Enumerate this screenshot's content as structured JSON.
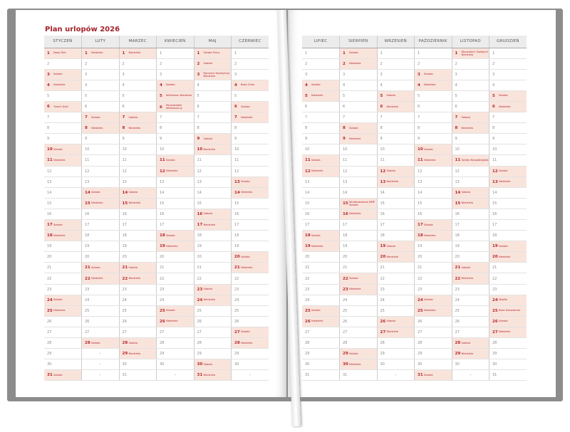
{
  "title": "Plan urlopów 2026",
  "empty_mark": "–",
  "colors": {
    "highlight": "#f9e4dc",
    "accent": "#b3282d",
    "title": "#a3232a"
  },
  "months": [
    {
      "name": "STYCZEŃ",
      "length": 31,
      "marks": {
        "1": "Nowy Rok",
        "3": "Sobota",
        "4": "Niedziela",
        "6": "Trzech Króli",
        "10": "Sobota",
        "11": "Niedziela",
        "17": "Sobota",
        "18": "Niedziela",
        "24": "Sobota",
        "25": "Niedziela",
        "31": "Sobota"
      }
    },
    {
      "name": "LUTY",
      "length": 28,
      "marks": {
        "1": "Niedziela",
        "7": "Sobota",
        "8": "Niedziela",
        "14": "Sobota",
        "15": "Niedziela",
        "21": "Sobota",
        "22": "Niedziela",
        "28": "Sobota"
      }
    },
    {
      "name": "MARZEC",
      "length": 31,
      "marks": {
        "1": "Niedziela",
        "7": "Sobota",
        "8": "Niedziela",
        "14": "Sobota",
        "15": "Niedziela",
        "21": "Sobota",
        "22": "Niedziela",
        "28": "Sobota",
        "29": "Niedziela"
      }
    },
    {
      "name": "KWIECIEŃ",
      "length": 30,
      "marks": {
        "4": "Sobota",
        "5": "Wielkanoc Niedziela",
        "6": "Poniedziałek Wielkanocny",
        "11": "Sobota",
        "12": "Niedziela",
        "18": "Sobota",
        "19": "Niedziela",
        "25": "Sobota",
        "26": "Niedziela"
      }
    },
    {
      "name": "MAJ",
      "length": 31,
      "marks": {
        "1": "Święto Pracy",
        "2": "Sobota",
        "3": "Rocznica Konstytucji Niedziela",
        "9": "Sobota",
        "10": "Niedziela",
        "16": "Sobota",
        "17": "Niedziela",
        "23": "Sobota",
        "24": "Niedziela",
        "30": "Sobota",
        "31": "Niedziela"
      }
    },
    {
      "name": "CZERWIEC",
      "length": 30,
      "marks": {
        "4": "Boże Ciało",
        "6": "Sobota",
        "7": "Niedziela",
        "13": "Sobota",
        "14": "Niedziela",
        "20": "Sobota",
        "21": "Niedziela",
        "27": "Sobota",
        "28": "Niedziela"
      }
    },
    {
      "name": "LIPIEC",
      "length": 31,
      "marks": {
        "4": "Sobota",
        "5": "Niedziela",
        "11": "Sobota",
        "12": "Niedziela",
        "18": "Sobota",
        "19": "Niedziela",
        "25": "Sobota",
        "26": "Niedziela"
      }
    },
    {
      "name": "SIERPIEŃ",
      "length": 31,
      "marks": {
        "1": "Sobota",
        "2": "Niedziela",
        "8": "Sobota",
        "9": "Niedziela",
        "15": "Wniebowzięcie NMP Sobota",
        "16": "Niedziela",
        "22": "Sobota",
        "23": "Niedziela",
        "29": "Sobota",
        "30": "Niedziela"
      }
    },
    {
      "name": "WRZESIEŃ",
      "length": 30,
      "marks": {
        "5": "Sobota",
        "6": "Niedziela",
        "12": "Sobota",
        "13": "Niedziela",
        "19": "Sobota",
        "20": "Niedziela",
        "26": "Sobota",
        "27": "Niedziela"
      }
    },
    {
      "name": "PAŹDZIERNIK",
      "length": 31,
      "marks": {
        "3": "Sobota",
        "4": "Niedziela",
        "10": "Sobota",
        "11": "Niedziela",
        "17": "Sobota",
        "18": "Niedziela",
        "24": "Sobota",
        "25": "Niedziela",
        "31": "Sobota"
      }
    },
    {
      "name": "LISTOPAD",
      "length": 30,
      "marks": {
        "1": "Wszystkich Świętych Niedziela",
        "7": "Sobota",
        "8": "Niedziela",
        "11": "Święto Niepodległości",
        "14": "Sobota",
        "15": "Niedziela",
        "21": "Sobota",
        "22": "Niedziela",
        "28": "Sobota",
        "29": "Niedziela"
      }
    },
    {
      "name": "GRUDZIEŃ",
      "length": 31,
      "marks": {
        "5": "Sobota",
        "6": "Niedziela",
        "12": "Sobota",
        "13": "Niedziela",
        "19": "Sobota",
        "20": "Niedziela",
        "24": "Wigilia",
        "25": "Boże Narodzenie",
        "26": "Sobota",
        "27": "Niedziela"
      }
    }
  ]
}
